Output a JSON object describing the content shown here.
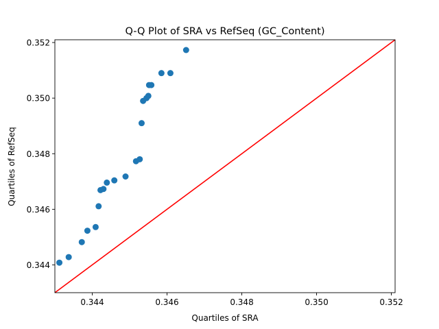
{
  "chart_data": {
    "type": "scatter",
    "title": "Q-Q Plot of SRA vs RefSeq (GC_Content)",
    "xlabel": "Quartiles of SRA",
    "ylabel": "Quartiles of RefSeq",
    "xlim": [
      0.343,
      0.3521
    ],
    "ylim": [
      0.343,
      0.3521
    ],
    "xticks": [
      "0.344",
      "0.346",
      "0.348",
      "0.350",
      "0.352"
    ],
    "yticks": [
      "0.344",
      "0.346",
      "0.348",
      "0.350",
      "0.352"
    ],
    "tick_values": [
      0.344,
      0.346,
      0.348,
      0.35,
      0.352
    ],
    "grid": false,
    "legend": false,
    "point_color": "#1f77b4",
    "line_color": "#ff0000",
    "reference_line": "y = x",
    "points": [
      {
        "x": 0.34312,
        "y": 0.34408
      },
      {
        "x": 0.34337,
        "y": 0.34428
      },
      {
        "x": 0.34372,
        "y": 0.34482
      },
      {
        "x": 0.34387,
        "y": 0.34523
      },
      {
        "x": 0.34409,
        "y": 0.34536
      },
      {
        "x": 0.34417,
        "y": 0.34611
      },
      {
        "x": 0.34422,
        "y": 0.34669
      },
      {
        "x": 0.3443,
        "y": 0.34673
      },
      {
        "x": 0.34439,
        "y": 0.34696
      },
      {
        "x": 0.34459,
        "y": 0.34704
      },
      {
        "x": 0.34489,
        "y": 0.34718
      },
      {
        "x": 0.34517,
        "y": 0.34773
      },
      {
        "x": 0.34527,
        "y": 0.3478
      },
      {
        "x": 0.34532,
        "y": 0.3491
      },
      {
        "x": 0.34536,
        "y": 0.3499
      },
      {
        "x": 0.34545,
        "y": 0.35
      },
      {
        "x": 0.3455,
        "y": 0.35008
      },
      {
        "x": 0.34552,
        "y": 0.35047
      },
      {
        "x": 0.34558,
        "y": 0.35047
      },
      {
        "x": 0.34585,
        "y": 0.3509
      },
      {
        "x": 0.34609,
        "y": 0.3509
      },
      {
        "x": 0.34651,
        "y": 0.35173
      }
    ]
  }
}
